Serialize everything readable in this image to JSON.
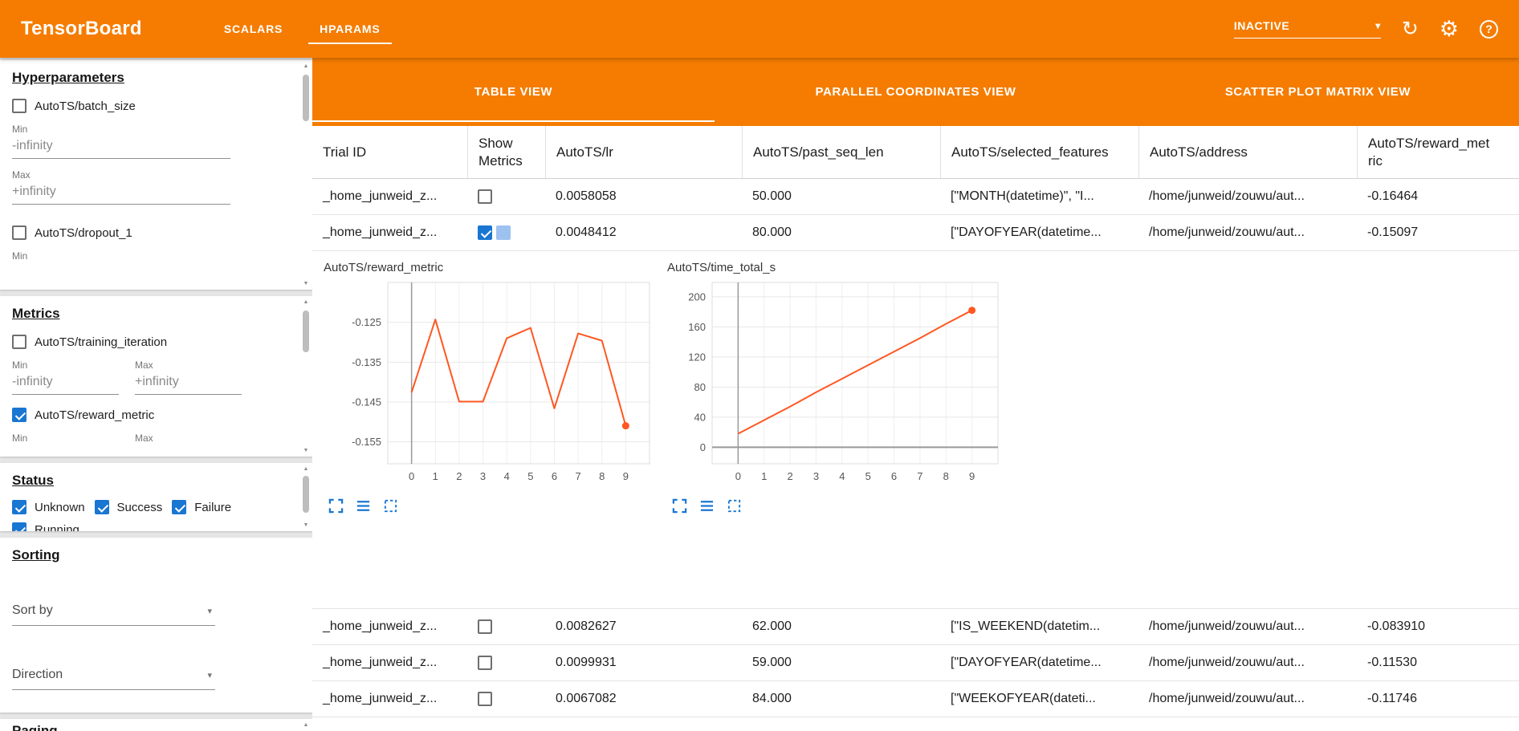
{
  "header": {
    "title": "TensorBoard",
    "tabs": [
      {
        "label": "SCALARS",
        "active": false
      },
      {
        "label": "HPARAMS",
        "active": true
      }
    ],
    "run_selector_value": "INACTIVE"
  },
  "icons": {
    "refresh": "↻",
    "settings": "⚙",
    "help": "?",
    "caret": "▾",
    "scroll_up": "▲",
    "scroll_down": "▼"
  },
  "colors": {
    "accent_orange": "#f57c00",
    "checkbox_blue": "#1976d2",
    "chart_line": "#ff5722",
    "tool_icon_blue": "#1976d2"
  },
  "sidebar": {
    "hyperparameters": {
      "heading": "Hyperparameters",
      "min_label": "Min",
      "max_label": "Max",
      "params": [
        {
          "name": "AutoTS/batch_size",
          "checked": false,
          "min_placeholder": "-infinity",
          "max_placeholder": "+infinity"
        },
        {
          "name": "AutoTS/dropout_1",
          "checked": false
        }
      ]
    },
    "metrics": {
      "heading": "Metrics",
      "min_label": "Min",
      "max_label": "Max",
      "items": [
        {
          "name": "AutoTS/training_iteration",
          "checked": false,
          "min_placeholder": "-infinity",
          "max_placeholder": "+infinity"
        },
        {
          "name": "AutoTS/reward_metric",
          "checked": true
        }
      ]
    },
    "status": {
      "heading": "Status",
      "options": [
        {
          "label": "Unknown",
          "checked": true
        },
        {
          "label": "Success",
          "checked": true
        },
        {
          "label": "Failure",
          "checked": true
        },
        {
          "label": "Running",
          "checked": true
        }
      ]
    },
    "sorting": {
      "heading": "Sorting",
      "sort_by_label": "Sort by",
      "direction_label": "Direction"
    },
    "paging": {
      "heading": "Paging"
    }
  },
  "views": {
    "tabs": [
      {
        "label": "TABLE VIEW",
        "active": true
      },
      {
        "label": "PARALLEL COORDINATES VIEW",
        "active": false
      },
      {
        "label": "SCATTER PLOT MATRIX VIEW",
        "active": false
      }
    ]
  },
  "table": {
    "columns": [
      "Trial ID",
      "Show Metrics",
      "AutoTS/lr",
      "AutoTS/past_seq_len",
      "AutoTS/selected_features",
      "AutoTS/address",
      "AutoTS/reward_metric"
    ],
    "column_keys": [
      "trial_id",
      "show_metrics",
      "lr",
      "past_seq_len",
      "selected_features",
      "address",
      "reward_metric"
    ],
    "rows_before_expanded": 2,
    "rows": [
      {
        "trial_id": "_home_junweid_z...",
        "show_metrics": false,
        "lr": "0.0058058",
        "past_seq_len": "50.000",
        "selected_features": "[\"MONTH(datetime)\", \"I...",
        "address": "/home/junweid/zouwu/aut...",
        "reward_metric": "-0.16464"
      },
      {
        "trial_id": "_home_junweid_z...",
        "show_metrics": true,
        "lr": "0.0048412",
        "past_seq_len": "80.000",
        "selected_features": "[\"DAYOFYEAR(datetime...",
        "address": "/home/junweid/zouwu/aut...",
        "reward_metric": "-0.15097"
      },
      {
        "trial_id": "_home_junweid_z...",
        "show_metrics": false,
        "lr": "0.0082627",
        "past_seq_len": "62.000",
        "selected_features": "[\"IS_WEEKEND(datetim...",
        "address": "/home/junweid/zouwu/aut...",
        "reward_metric": "-0.083910"
      },
      {
        "trial_id": "_home_junweid_z...",
        "show_metrics": false,
        "lr": "0.0099931",
        "past_seq_len": "59.000",
        "selected_features": "[\"DAYOFYEAR(datetime...",
        "address": "/home/junweid/zouwu/aut...",
        "reward_metric": "-0.11530"
      },
      {
        "trial_id": "_home_junweid_z...",
        "show_metrics": false,
        "lr": "0.0067082",
        "past_seq_len": "84.000",
        "selected_features": "[\"WEEKOFYEAR(dateti...",
        "address": "/home/junweid/zouwu/aut...",
        "reward_metric": "-0.11746"
      }
    ]
  },
  "chart_data": [
    {
      "type": "line",
      "title": "AutoTS/reward_metric",
      "x": [
        0,
        1,
        2,
        3,
        4,
        5,
        6,
        7,
        8,
        9
      ],
      "xticks": [
        0,
        1,
        2,
        3,
        4,
        5,
        6,
        7,
        8,
        9
      ],
      "values": [
        -0.1426,
        -0.1243,
        -0.1449,
        -0.1449,
        -0.129,
        -0.1264,
        -0.1466,
        -0.1278,
        -0.1296,
        -0.15097
      ],
      "yticks": [
        -0.125,
        -0.135,
        -0.145,
        -0.155
      ],
      "ylim": [
        -0.1605,
        -0.115
      ],
      "line_color": "#ff5722",
      "end_dot": true,
      "zero_axis": false,
      "grid": true,
      "legend": "none"
    },
    {
      "type": "line",
      "title": "AutoTS/time_total_s",
      "x": [
        0,
        1,
        2,
        3,
        4,
        5,
        6,
        7,
        8,
        9
      ],
      "xticks": [
        0,
        1,
        2,
        3,
        4,
        5,
        6,
        7,
        8,
        9
      ],
      "values": [
        18,
        36,
        54,
        73,
        91,
        109,
        127,
        145,
        164,
        182
      ],
      "yticks": [
        0,
        40,
        80,
        120,
        160,
        200
      ],
      "ylim": [
        -22,
        219
      ],
      "line_color": "#ff5722",
      "end_dot": true,
      "zero_axis": true,
      "grid": true,
      "legend": "none"
    }
  ]
}
